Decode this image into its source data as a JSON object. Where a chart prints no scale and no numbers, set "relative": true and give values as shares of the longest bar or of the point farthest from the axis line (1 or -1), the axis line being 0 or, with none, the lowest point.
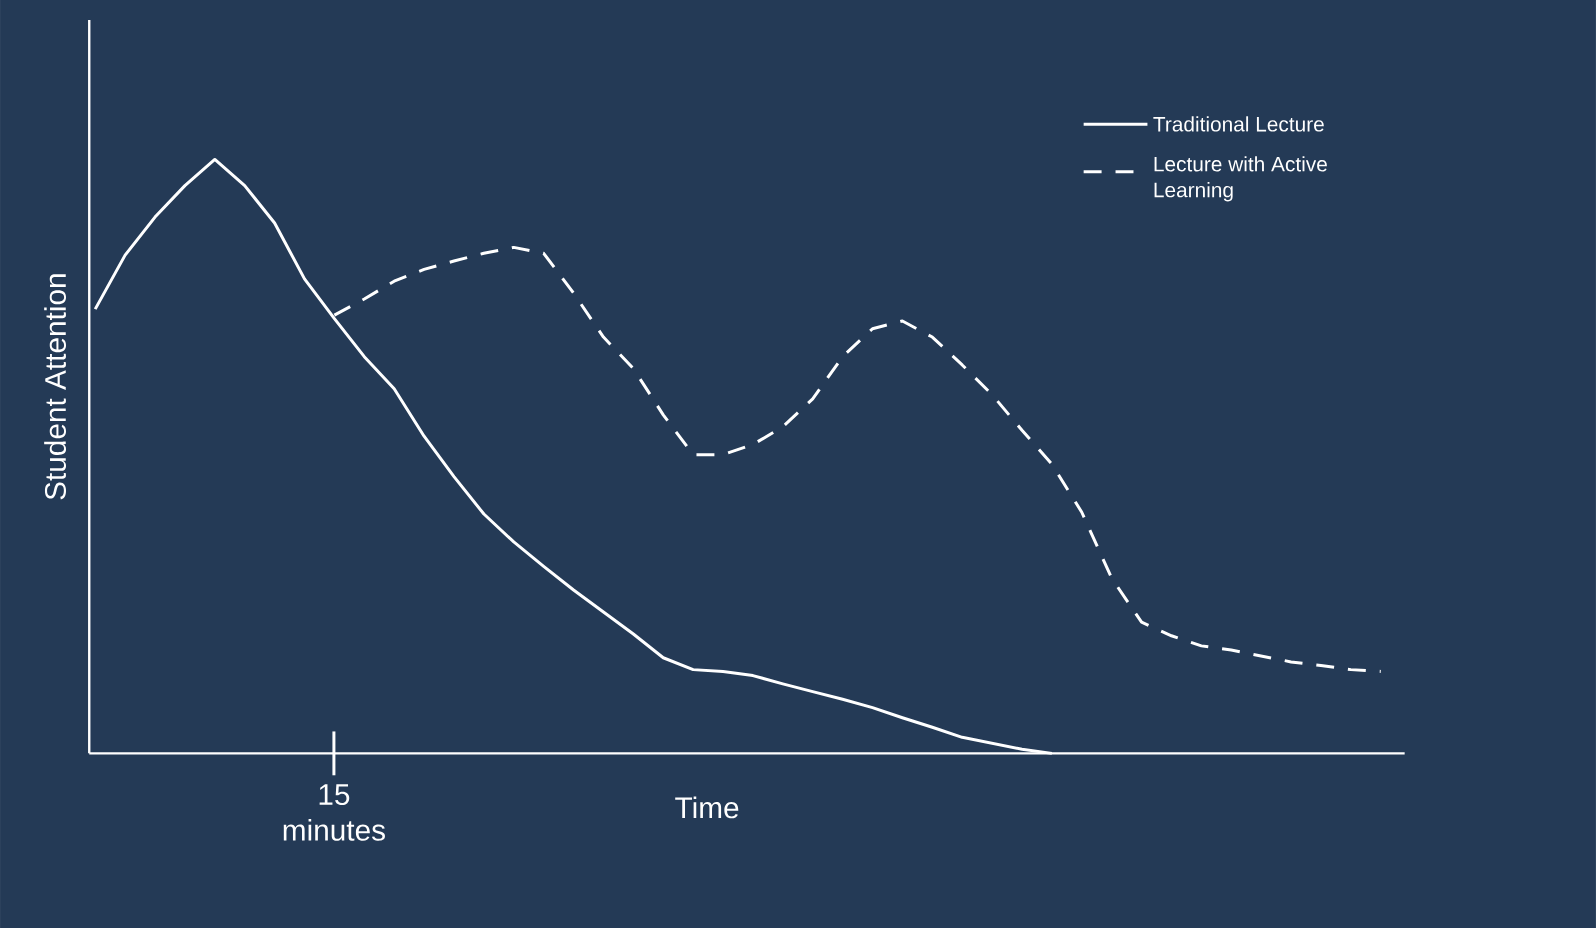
{
  "chart_data": {
    "type": "line",
    "relative": true,
    "xlabel": "Time",
    "ylabel": "Student Attention",
    "legend": "top right",
    "annotations": [
      "15 minutes"
    ],
    "categories": [
      null,
      null,
      null,
      null,
      null,
      null,
      null,
      null,
      null,
      null,
      null,
      null,
      null,
      null,
      null,
      null,
      null,
      null,
      null,
      null,
      null,
      null,
      null,
      null,
      null,
      null,
      null,
      null,
      null,
      null,
      null,
      null,
      null,
      null,
      null,
      null,
      null,
      null,
      null,
      null,
      null,
      null,
      null,
      null
    ],
    "series": [
      {
        "name": "Traditional Lecture",
        "color": "#ffffff",
        "line_style": "solid",
        "values": [
          0.748,
          0.839,
          0.903,
          0.956,
          1,
          0.956,
          0.893,
          0.799,
          0.732,
          0.668,
          0.614,
          0.534,
          0.466,
          0.403,
          0.356,
          0.315,
          0.275,
          0.238,
          0.201,
          0.161,
          0.141,
          0.138,
          0.131,
          0.117,
          0.104,
          0.091,
          0.077,
          0.06,
          0.044,
          0.027,
          0.017,
          0.007,
          0,
          null,
          null,
          null,
          null,
          null,
          null,
          null,
          null,
          null,
          null,
          null
        ]
      },
      {
        "name": "Lecture with Active Learning",
        "color": "#ffffff",
        "line_style": "dashed",
        "values": [
          null,
          null,
          null,
          null,
          null,
          null,
          null,
          null,
          0.738,
          0.765,
          0.795,
          0.815,
          0.829,
          0.842,
          0.852,
          0.842,
          0.775,
          0.701,
          0.648,
          0.57,
          0.503,
          0.503,
          0.52,
          0.55,
          0.597,
          0.668,
          0.715,
          0.728,
          0.701,
          0.654,
          0.604,
          0.544,
          0.487,
          0.406,
          0.295,
          0.221,
          0.198,
          0.181,
          0.174,
          0.164,
          0.154,
          0.148,
          0.141,
          0.138
        ]
      }
    ]
  }
}
